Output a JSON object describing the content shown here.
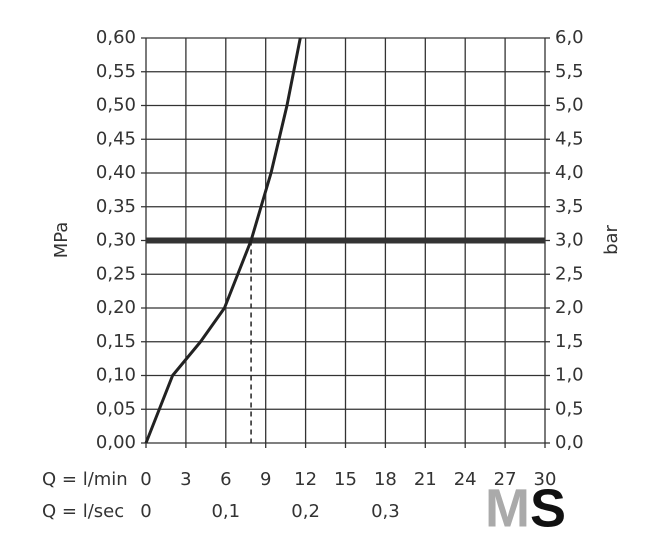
{
  "chart_data": {
    "type": "line",
    "x_label": "Q = l/min",
    "x2_label": "Q = l/sec",
    "y_label": "MPa",
    "y2_label": "bar",
    "x": [
      0,
      1,
      2,
      4.1,
      5.9,
      7.9,
      9.4,
      10.6,
      11.6
    ],
    "values": [
      0,
      0.05,
      0.1,
      0.15,
      0.2,
      0.3,
      0.4,
      0.5,
      0.6
    ],
    "color": "#222222",
    "xlim": [
      0,
      30
    ],
    "xticks": [
      0,
      3,
      6,
      9,
      12,
      15,
      18,
      21,
      24,
      27,
      30
    ],
    "x2lim": [
      0,
      0.5
    ],
    "x2ticks": [
      0,
      {
        "value": 0.1,
        "label": "0,1"
      },
      {
        "value": 0.2,
        "label": "0,2"
      },
      {
        "value": 0.3,
        "label": "0,3"
      }
    ],
    "ylim": [
      0,
      0.6
    ],
    "yticks": [
      {
        "value": 0,
        "label": "0,00"
      },
      {
        "value": 0.05,
        "label": "0,05"
      },
      {
        "value": 0.1,
        "label": "0,10"
      },
      {
        "value": 0.15,
        "label": "0,15"
      },
      {
        "value": 0.2,
        "label": "0,20"
      },
      {
        "value": 0.25,
        "label": "0,25"
      },
      {
        "value": 0.3,
        "label": "0,30"
      },
      {
        "value": 0.35,
        "label": "0,35"
      },
      {
        "value": 0.4,
        "label": "0,40"
      },
      {
        "value": 0.45,
        "label": "0,45"
      },
      {
        "value": 0.5,
        "label": "0,50"
      },
      {
        "value": 0.55,
        "label": "0,55"
      },
      {
        "value": 0.6,
        "label": "0,60"
      }
    ],
    "y2lim": [
      0,
      6
    ],
    "y2ticks": [
      {
        "value": 0,
        "label": "0,0"
      },
      {
        "value": 0.5,
        "label": "0,5"
      },
      {
        "value": 1,
        "label": "1,0"
      },
      {
        "value": 1.5,
        "label": "1,5"
      },
      {
        "value": 2,
        "label": "2,0"
      },
      {
        "value": 2.5,
        "label": "2,5"
      },
      {
        "value": 3,
        "label": "3,0"
      },
      {
        "value": 3.5,
        "label": "3,5"
      },
      {
        "value": 4,
        "label": "4,0"
      },
      {
        "value": 4.5,
        "label": "4,5"
      },
      {
        "value": 5,
        "label": "5,0"
      },
      {
        "value": 5.5,
        "label": "5,5"
      },
      {
        "value": 6,
        "label": "6,0"
      }
    ],
    "grid": true,
    "reference_line_y": 0.3,
    "operating_point_x": 7.9,
    "logo": {
      "left": "M",
      "right": "S"
    }
  }
}
